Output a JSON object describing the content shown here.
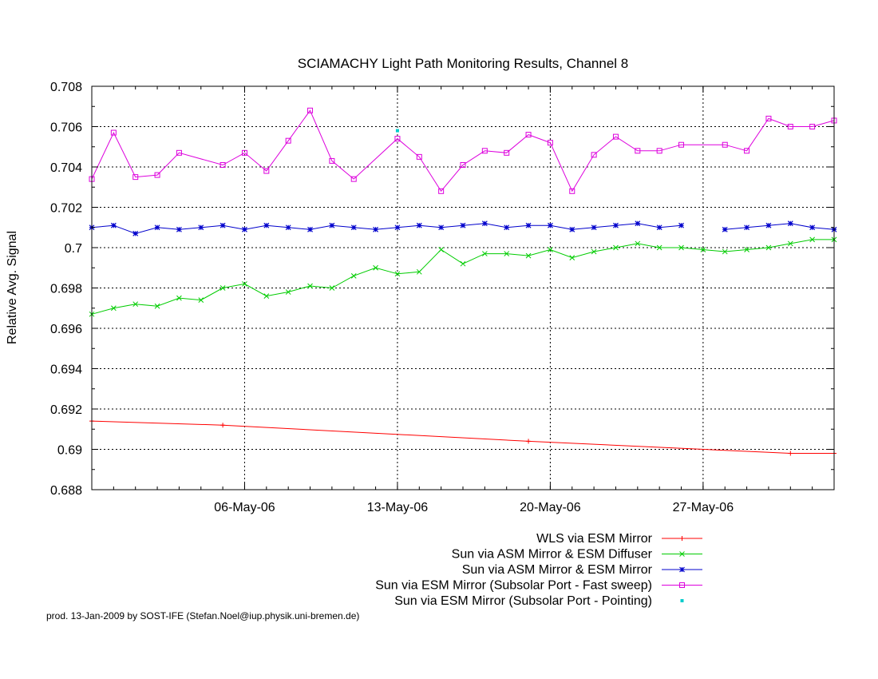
{
  "chart_data": {
    "type": "line",
    "title": "SCIAMACHY Light Path Monitoring Results, Channel 8",
    "ylabel": "Relative Avg. Signal",
    "xlabel": "",
    "ylim": [
      0.688,
      0.708
    ],
    "yticks": [
      "0.708",
      "0.706",
      "0.704",
      "0.702",
      "0.7",
      "0.698",
      "0.696",
      "0.694",
      "0.692",
      "0.69",
      "0.688"
    ],
    "xlim": [
      "2006-04-29",
      "2006-06-02"
    ],
    "xticks": [
      {
        "date": "2006-05-06",
        "label": "06-May-06"
      },
      {
        "date": "2006-05-13",
        "label": "13-May-06"
      },
      {
        "date": "2006-05-20",
        "label": "20-May-06"
      },
      {
        "date": "2006-05-27",
        "label": "27-May-06"
      }
    ],
    "grid": true,
    "legend_position": "below-right",
    "footer": "prod. 13-Jan-2009 by SOST-IFE (Stefan.Noel@iup.physik.uni-bremen.de)",
    "series": [
      {
        "name": "WLS via ESM Mirror",
        "color": "#ff0000",
        "marker": "plus",
        "x": [
          "2006-04-29",
          "2006-05-05",
          "2006-05-19",
          "2006-05-31",
          "2006-06-02"
        ],
        "y": [
          0.6914,
          0.6912,
          0.6904,
          0.6898,
          0.6898
        ]
      },
      {
        "name": "Sun via ASM Mirror & ESM Diffuser",
        "color": "#00cc00",
        "marker": "cross",
        "x": [
          "2006-04-29",
          "2006-04-30",
          "2006-05-01",
          "2006-05-02",
          "2006-05-03",
          "2006-05-04",
          "2006-05-05",
          "2006-05-06",
          "2006-05-07",
          "2006-05-08",
          "2006-05-09",
          "2006-05-10",
          "2006-05-11",
          "2006-05-12",
          "2006-05-13",
          "2006-05-14",
          "2006-05-15",
          "2006-05-16",
          "2006-05-17",
          "2006-05-18",
          "2006-05-19",
          "2006-05-20",
          "2006-05-21",
          "2006-05-22",
          "2006-05-23",
          "2006-05-24",
          "2006-05-25",
          "2006-05-26",
          "2006-05-27",
          "2006-05-28",
          "2006-05-29",
          "2006-05-30",
          "2006-05-31",
          "2006-06-01",
          "2006-06-02"
        ],
        "y": [
          0.6967,
          0.697,
          0.6972,
          0.6971,
          0.6975,
          0.6974,
          0.698,
          0.6982,
          0.6976,
          0.6978,
          0.6981,
          0.698,
          0.6986,
          0.699,
          0.6987,
          0.6988,
          0.6999,
          0.6992,
          0.6997,
          0.6997,
          0.6996,
          0.6999,
          0.6995,
          0.6998,
          0.7,
          0.7002,
          0.7,
          0.7,
          0.6999,
          0.6998,
          0.6999,
          0.7,
          0.7002,
          0.7004,
          0.7004
        ]
      },
      {
        "name": "Sun via ASM Mirror & ESM Mirror",
        "color": "#0000cc",
        "marker": "star",
        "x": [
          "2006-04-29",
          "2006-04-30",
          "2006-05-01",
          "2006-05-02",
          "2006-05-03",
          "2006-05-04",
          "2006-05-05",
          "2006-05-06",
          "2006-05-07",
          "2006-05-08",
          "2006-05-09",
          "2006-05-10",
          "2006-05-11",
          "2006-05-12",
          "2006-05-13",
          "2006-05-14",
          "2006-05-15",
          "2006-05-16",
          "2006-05-17",
          "2006-05-18",
          "2006-05-19",
          "2006-05-20",
          "2006-05-21",
          "2006-05-22",
          "2006-05-23",
          "2006-05-24",
          "2006-05-25",
          "2006-05-26",
          null,
          "2006-05-28",
          "2006-05-29",
          "2006-05-30",
          "2006-05-31",
          "2006-06-01",
          "2006-06-02"
        ],
        "y": [
          0.701,
          0.7011,
          0.7007,
          0.701,
          0.7009,
          0.701,
          0.7011,
          0.7009,
          0.7011,
          0.701,
          0.7009,
          0.7011,
          0.701,
          0.7009,
          0.701,
          0.7011,
          0.701,
          0.7011,
          0.7012,
          0.701,
          0.7011,
          0.7011,
          0.7009,
          0.701,
          0.7011,
          0.7012,
          0.701,
          0.7011,
          null,
          0.7009,
          0.701,
          0.7011,
          0.7012,
          0.701,
          0.7009
        ]
      },
      {
        "name": "Sun via ESM Mirror (Subsolar Port - Fast sweep)",
        "color": "#dd00dd",
        "marker": "square",
        "x": [
          "2006-04-29",
          "2006-04-30",
          "2006-05-01",
          "2006-05-02",
          "2006-05-03",
          "2006-05-05",
          "2006-05-06",
          "2006-05-07",
          "2006-05-08",
          "2006-05-09",
          "2006-05-10",
          "2006-05-11",
          "2006-05-13",
          "2006-05-14",
          "2006-05-15",
          "2006-05-16",
          "2006-05-17",
          "2006-05-18",
          "2006-05-19",
          "2006-05-20",
          "2006-05-21",
          "2006-05-22",
          "2006-05-23",
          "2006-05-24",
          "2006-05-25",
          "2006-05-26",
          "2006-05-28",
          "2006-05-29",
          "2006-05-30",
          "2006-05-31",
          "2006-06-01",
          "2006-06-02"
        ],
        "y": [
          0.7034,
          0.7057,
          0.7035,
          0.7036,
          0.7047,
          0.7041,
          0.7047,
          0.7038,
          0.7053,
          0.7068,
          0.7043,
          0.7034,
          0.7054,
          0.7045,
          0.7028,
          0.7041,
          0.7048,
          0.7047,
          0.7056,
          0.7052,
          0.7028,
          0.7046,
          0.7055,
          0.7048,
          0.7048,
          0.7051,
          0.7051,
          0.7048,
          0.7064,
          0.706,
          0.706,
          0.7063
        ]
      },
      {
        "name": "Sun via ESM Mirror (Subsolar Port - Pointing)",
        "color": "#00cccc",
        "marker": "dot",
        "x": [
          "2006-05-13"
        ],
        "y": [
          0.7058
        ]
      }
    ]
  }
}
